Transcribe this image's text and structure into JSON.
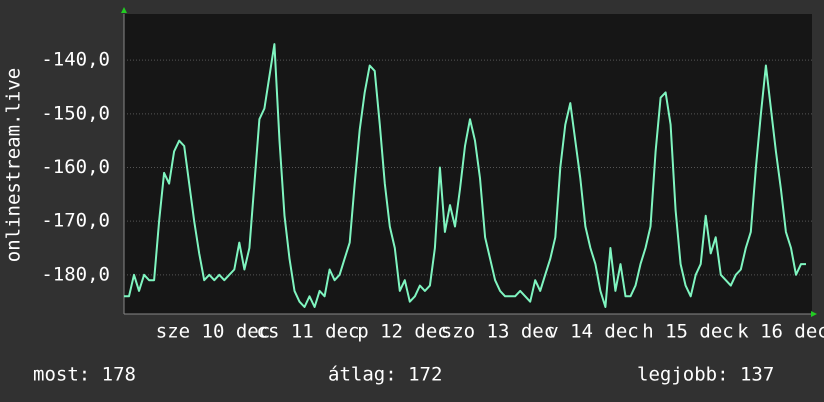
{
  "chart_data": {
    "type": "line",
    "y_label": "onlinestream.live",
    "x_labels": [
      "sze 10 dec",
      "cs 11 dec",
      "p 12 dec",
      "szo 13 dec",
      "v 14 dec",
      "h 15 dec",
      "k 16 dec"
    ],
    "series": [
      {
        "name": "onlinestream.live",
        "color": "#7ff5c0",
        "values": [
          -184,
          -184,
          -180,
          -183,
          -180,
          -181,
          -181,
          -170,
          -161,
          -163,
          -157,
          -155,
          -156,
          -163,
          -170,
          -176,
          -181,
          -180,
          -181,
          -180,
          -181,
          -180,
          -179,
          -174,
          -179,
          -175,
          -163,
          -151,
          -149,
          -143,
          -137,
          -155,
          -169,
          -177,
          -183,
          -185,
          -186,
          -184,
          -186,
          -183,
          -184,
          -179,
          -181,
          -180,
          -177,
          -174,
          -163,
          -153,
          -146,
          -141,
          -142,
          -152,
          -163,
          -171,
          -175,
          -183,
          -181,
          -185,
          -184,
          -182,
          -183,
          -182,
          -175,
          -160,
          -172,
          -167,
          -171,
          -164,
          -156,
          -151,
          -155,
          -162,
          -173,
          -177,
          -181,
          -183,
          -184,
          -184,
          -184,
          -183,
          -184,
          -185,
          -181,
          -183,
          -180,
          -177,
          -173,
          -160,
          -152,
          -148,
          -155,
          -162,
          -171,
          -175,
          -178,
          -183,
          -186,
          -175,
          -183,
          -178,
          -184,
          -184,
          -182,
          -178,
          -175,
          -171,
          -157,
          -147,
          -146,
          -152,
          -168,
          -178,
          -182,
          -184,
          -180,
          -178,
          -169,
          -176,
          -173,
          -180,
          -181,
          -182,
          -180,
          -179,
          -175,
          -172,
          -160,
          -150,
          -141,
          -149,
          -157,
          -164,
          -172,
          -175,
          -180,
          -178,
          -178
        ]
      }
    ],
    "ylim": [
      -187.3,
      -131.4
    ],
    "yticks": [
      {
        "value": -140,
        "label": "-140,0"
      },
      {
        "value": -150,
        "label": "-150,0"
      },
      {
        "value": -160,
        "label": "-160,0"
      },
      {
        "value": -170,
        "label": "-170,0"
      },
      {
        "value": -180,
        "label": "-180,0"
      }
    ],
    "grid": true,
    "footer": [
      "most: 178",
      "átlag: 172",
      "legjobb: 137"
    ]
  }
}
